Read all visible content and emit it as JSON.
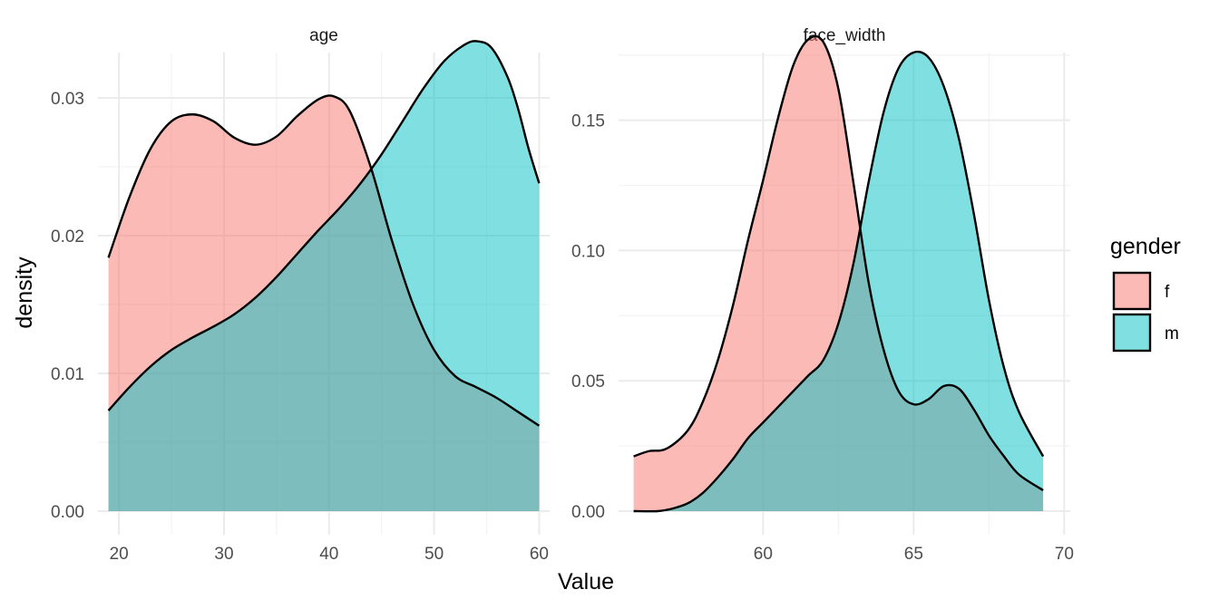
{
  "chart_data": {
    "type": "area",
    "ylabel": "density",
    "xlabel": "Value",
    "grid": true,
    "legend": {
      "title": "gender",
      "position": "right",
      "entries": [
        {
          "label": "f",
          "color": "#F8766D"
        },
        {
          "label": "m",
          "color": "#00BFC4"
        }
      ]
    },
    "fill_alpha": 0.5,
    "panels": [
      {
        "title": "age",
        "xlim": [
          18,
          61
        ],
        "ylim": [
          0,
          0.035
        ],
        "x_ticks": [
          20,
          30,
          40,
          50,
          60
        ],
        "y_ticks": [
          0.0,
          0.01,
          0.02,
          0.03
        ],
        "y_tick_labels": [
          "0.00",
          "0.01",
          "0.02",
          "0.03"
        ],
        "series": [
          {
            "name": "f",
            "x": [
              19,
              21,
              23,
              25,
              27,
              29,
              31,
              33,
              35,
              37,
              39,
              40.5,
              42,
              44,
              46,
              48,
              50,
              52,
              54,
              56,
              58,
              60
            ],
            "y": [
              0.0184,
              0.0228,
              0.0263,
              0.0283,
              0.0288,
              0.0283,
              0.0271,
              0.0266,
              0.0272,
              0.0287,
              0.0299,
              0.0301,
              0.029,
              0.0249,
              0.0196,
              0.015,
              0.0117,
              0.0098,
              0.009,
              0.0082,
              0.0072,
              0.0062
            ]
          },
          {
            "name": "m",
            "x": [
              19,
              21,
              23,
              25,
              27,
              29,
              31,
              33,
              35,
              37,
              39,
              41,
              43,
              45,
              47,
              49,
              51,
              53,
              54.2,
              55.5,
              57,
              58,
              59,
              60
            ],
            "y": [
              0.0073,
              0.009,
              0.0105,
              0.0117,
              0.0126,
              0.0134,
              0.0143,
              0.0155,
              0.017,
              0.0187,
              0.0204,
              0.022,
              0.0238,
              0.0259,
              0.0283,
              0.0307,
              0.0327,
              0.0339,
              0.0341,
              0.0336,
              0.0315,
              0.0292,
              0.0263,
              0.0238
            ]
          }
        ]
      },
      {
        "title": "face_width",
        "xlim": [
          55.2,
          70.2
        ],
        "ylim": [
          0,
          0.185
        ],
        "x_ticks": [
          60,
          65,
          70
        ],
        "y_ticks": [
          0.0,
          0.05,
          0.1,
          0.15
        ],
        "y_tick_labels": [
          "0.00",
          "0.05",
          "0.10",
          "0.15"
        ],
        "series": [
          {
            "name": "f",
            "x": [
              55.7,
              56.2,
              56.8,
              57.5,
              58,
              58.5,
              59,
              59.5,
              60,
              60.5,
              61,
              61.5,
              62,
              62.5,
              63,
              63.5,
              64,
              64.5,
              65,
              65.5,
              66,
              66.5,
              67,
              67.5,
              68,
              68.5,
              69.3
            ],
            "y": [
              0.021,
              0.023,
              0.024,
              0.031,
              0.042,
              0.058,
              0.079,
              0.104,
              0.127,
              0.151,
              0.171,
              0.181,
              0.18,
              0.162,
              0.126,
              0.088,
              0.062,
              0.046,
              0.041,
              0.043,
              0.048,
              0.047,
              0.039,
              0.029,
              0.021,
              0.014,
              0.008
            ]
          },
          {
            "name": "m",
            "x": [
              55.7,
              56.5,
              57,
              57.5,
              58,
              58.5,
              59,
              59.5,
              60,
              60.5,
              61,
              61.5,
              62,
              62.5,
              63,
              63.5,
              64,
              64.5,
              65,
              65.5,
              66,
              66.5,
              67,
              67.5,
              68,
              68.5,
              69.3
            ],
            "y": [
              0.0,
              0.0,
              0.001,
              0.003,
              0.007,
              0.013,
              0.02,
              0.028,
              0.034,
              0.04,
              0.046,
              0.052,
              0.058,
              0.072,
              0.095,
              0.126,
              0.153,
              0.17,
              0.176,
              0.174,
              0.163,
              0.143,
              0.114,
              0.081,
              0.055,
              0.038,
              0.021
            ]
          }
        ]
      }
    ]
  }
}
